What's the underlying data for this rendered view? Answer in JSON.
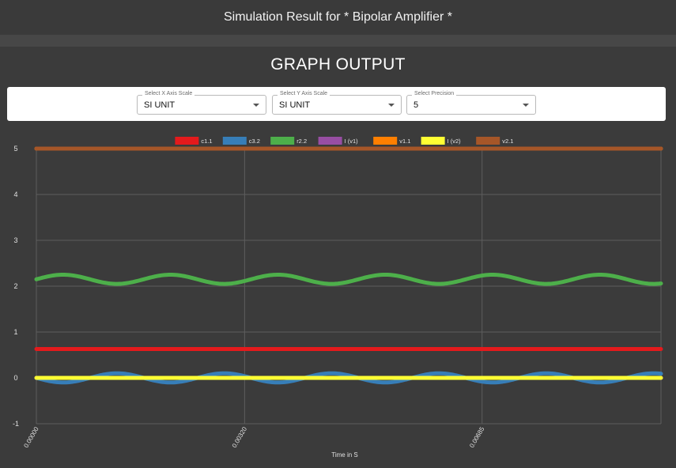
{
  "header": {
    "title": "Simulation Result for * Bipolar Amplifier *"
  },
  "graph": {
    "heading": "GRAPH OUTPUT"
  },
  "controls": {
    "x_scale": {
      "label": "Select X Axis Scale",
      "value": "SI UNIT"
    },
    "y_scale": {
      "label": "Select Y Axis Scale",
      "value": "SI UNIT"
    },
    "precision": {
      "label": "Select Precision",
      "value": "5"
    }
  },
  "chart_data": {
    "type": "line",
    "xlabel": "Time in S",
    "ylabel": "",
    "x_tick_labels": [
      "0.00000",
      "0.00320",
      "0.00685"
    ],
    "x_ticks": [
      0,
      0.0032,
      0.00685
    ],
    "xlim": [
      0,
      0.0096
    ],
    "ylim": [
      -1,
      5
    ],
    "y_ticks": [
      -1,
      0,
      1,
      2,
      3,
      4,
      5
    ],
    "grid": true,
    "legend_position": "top",
    "series": [
      {
        "name": "c1.1",
        "color": "#e41a1c",
        "kind": "constant",
        "value": 0.63
      },
      {
        "name": "c3.2",
        "color": "#377eb8",
        "kind": "sine",
        "offset": 0.0,
        "amplitude": 0.1,
        "period": 0.00165,
        "phase": 3.14159
      },
      {
        "name": "r2.2",
        "color": "#4daf4a",
        "kind": "sine",
        "offset": 2.15,
        "amplitude": 0.1,
        "period": 0.00165,
        "phase": 0
      },
      {
        "name": "I (v1)",
        "color": "#984ea3",
        "kind": "constant",
        "value": 0.0
      },
      {
        "name": "v1.1",
        "color": "#ff7f00",
        "kind": "constant",
        "value": 5.0
      },
      {
        "name": "I (v2)",
        "color": "#ffff33",
        "kind": "constant",
        "value": 0.0
      },
      {
        "name": "v2.1",
        "color": "#a65628",
        "kind": "constant",
        "value": 5.0
      }
    ]
  }
}
